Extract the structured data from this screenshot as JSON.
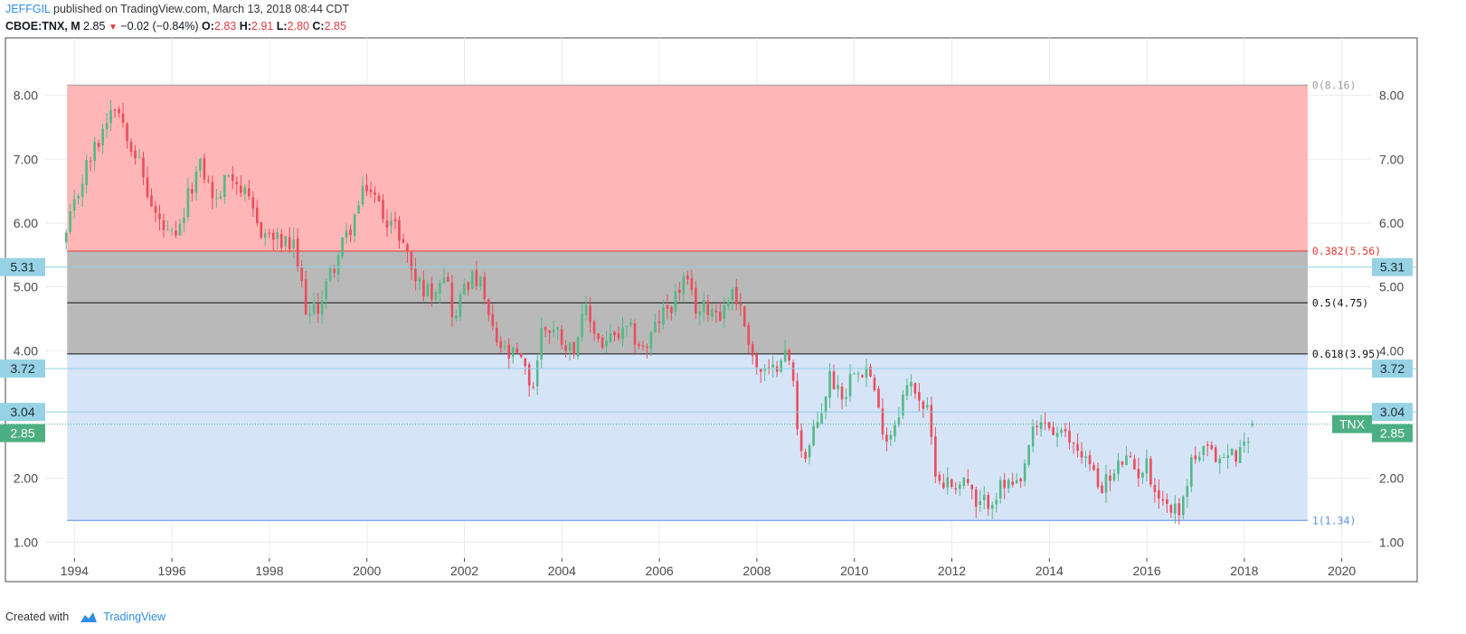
{
  "header": {
    "user": "JEFFGIL",
    "published": "published on TradingView.com, March 13, 2018 08:44 CDT",
    "symbol": "CBOE:TNX, M",
    "last": "2.85",
    "change": "−0.02 (−0.84%)",
    "o_label": "O:",
    "o": "2.83",
    "h_label": "H:",
    "h": "2.91",
    "l_label": "L:",
    "l": "2.80",
    "c_label": "C:",
    "c": "2.85"
  },
  "footer": {
    "created_with": "Created with",
    "brand": "TradingView",
    "brand_icon": "tradingview-cloud-icon"
  },
  "chart_data": {
    "type": "candlestick",
    "symbol": "TNX",
    "interval": "Monthly",
    "ylim": [
      0.75,
      8.9
    ],
    "xlim": [
      1993.4,
      2020.6
    ],
    "y_ticks": [
      "1.00",
      "2.00",
      "4.00",
      "5.00",
      "6.00",
      "7.00",
      "8.00"
    ],
    "x_ticks": [
      "1994",
      "1996",
      "1998",
      "2000",
      "2002",
      "2004",
      "2006",
      "2008",
      "2010",
      "2012",
      "2014",
      "2016",
      "2018",
      "2020"
    ],
    "fib_retracement": {
      "x_start": 1993.85,
      "x_end": 2019.3,
      "levels": [
        {
          "label": "0(8.16)",
          "value": 8.16,
          "color": "#9e9e9e",
          "fill": "#ffb6b6"
        },
        {
          "label": "0.382(5.56)",
          "value": 5.56,
          "color": "#e53935",
          "fill": "#b9b9b9"
        },
        {
          "label": "0.5(4.75)",
          "value": 4.75,
          "color": "#111111",
          "fill": "#b9b9b9"
        },
        {
          "label": "0.618(3.95)",
          "value": 3.95,
          "color": "#111111",
          "fill": "#d6e4f8"
        },
        {
          "label": "1(1.34)",
          "value": 1.34,
          "color": "#5b8fe6",
          "fill": null
        }
      ]
    },
    "horizontal_lines": [
      {
        "value": 5.31,
        "label": "5.31",
        "color": "#8fd1e2",
        "badge": "#96d2e4"
      },
      {
        "value": 3.72,
        "label": "3.72",
        "color": "#8fd1e2",
        "badge": "#96d2e4"
      },
      {
        "value": 3.04,
        "label": "3.04",
        "color": "#8fd1e2",
        "badge": "#96d2e4"
      }
    ],
    "last_price": {
      "value": 2.85,
      "label": "2.85",
      "tag": "TNX",
      "color": "#4caf82"
    },
    "colors": {
      "up": "#53b987",
      "down": "#eb4d5c",
      "grid": "#e8ebef"
    },
    "anchors": [
      [
        1993.83,
        5.8
      ],
      [
        1994.2,
        6.8
      ],
      [
        1994.5,
        7.3
      ],
      [
        1994.8,
        7.95
      ],
      [
        1995.0,
        7.6
      ],
      [
        1995.3,
        7.0
      ],
      [
        1995.6,
        6.2
      ],
      [
        1995.9,
        5.8
      ],
      [
        1996.1,
        5.7
      ],
      [
        1996.4,
        6.6
      ],
      [
        1996.6,
        6.9
      ],
      [
        1996.9,
        6.3
      ],
      [
        1997.2,
        6.85
      ],
      [
        1997.5,
        6.4
      ],
      [
        1997.8,
        5.9
      ],
      [
        1998.2,
        5.7
      ],
      [
        1998.5,
        5.6
      ],
      [
        1998.8,
        4.5
      ],
      [
        1999.0,
        4.7
      ],
      [
        1999.3,
        5.3
      ],
      [
        1999.7,
        6.0
      ],
      [
        2000.0,
        6.6
      ],
      [
        2000.3,
        6.2
      ],
      [
        2000.7,
        5.8
      ],
      [
        2001.0,
        5.1
      ],
      [
        2001.3,
        4.9
      ],
      [
        2001.6,
        5.3
      ],
      [
        2001.8,
        4.4
      ],
      [
        2002.0,
        5.1
      ],
      [
        2002.3,
        5.1
      ],
      [
        2002.6,
        4.2
      ],
      [
        2002.9,
        3.9
      ],
      [
        2003.1,
        3.9
      ],
      [
        2003.4,
        3.4
      ],
      [
        2003.6,
        4.4
      ],
      [
        2003.9,
        4.3
      ],
      [
        2004.2,
        4.0
      ],
      [
        2004.5,
        4.6
      ],
      [
        2004.8,
        4.1
      ],
      [
        2005.1,
        4.2
      ],
      [
        2005.4,
        4.3
      ],
      [
        2005.7,
        4.0
      ],
      [
        2006.0,
        4.5
      ],
      [
        2006.3,
        4.8
      ],
      [
        2006.5,
        5.1
      ],
      [
        2006.8,
        4.6
      ],
      [
        2007.0,
        4.7
      ],
      [
        2007.3,
        4.6
      ],
      [
        2007.5,
        5.0
      ],
      [
        2007.8,
        4.3
      ],
      [
        2008.0,
        3.7
      ],
      [
        2008.3,
        3.6
      ],
      [
        2008.5,
        4.0
      ],
      [
        2008.7,
        3.8
      ],
      [
        2008.85,
        2.7
      ],
      [
        2009.0,
        2.3
      ],
      [
        2009.3,
        3.0
      ],
      [
        2009.5,
        3.6
      ],
      [
        2009.8,
        3.3
      ],
      [
        2010.0,
        3.8
      ],
      [
        2010.3,
        3.7
      ],
      [
        2010.5,
        3.0
      ],
      [
        2010.7,
        2.6
      ],
      [
        2011.0,
        3.3
      ],
      [
        2011.2,
        3.5
      ],
      [
        2011.5,
        3.0
      ],
      [
        2011.7,
        2.0
      ],
      [
        2012.0,
        1.9
      ],
      [
        2012.3,
        2.0
      ],
      [
        2012.5,
        1.5
      ],
      [
        2012.8,
        1.7
      ],
      [
        2013.1,
        1.9
      ],
      [
        2013.4,
        1.8
      ],
      [
        2013.6,
        2.6
      ],
      [
        2013.9,
        2.9
      ],
      [
        2014.1,
        2.7
      ],
      [
        2014.4,
        2.6
      ],
      [
        2014.7,
        2.4
      ],
      [
        2015.0,
        1.9
      ],
      [
        2015.3,
        2.0
      ],
      [
        2015.5,
        2.3
      ],
      [
        2015.8,
        2.1
      ],
      [
        2016.0,
        2.2
      ],
      [
        2016.2,
        1.8
      ],
      [
        2016.5,
        1.5
      ],
      [
        2016.75,
        1.6
      ],
      [
        2016.9,
        2.3
      ],
      [
        2017.2,
        2.4
      ],
      [
        2017.5,
        2.3
      ],
      [
        2017.8,
        2.4
      ],
      [
        2017.95,
        2.4
      ],
      [
        2018.05,
        2.7
      ],
      [
        2018.2,
        2.85
      ]
    ]
  }
}
